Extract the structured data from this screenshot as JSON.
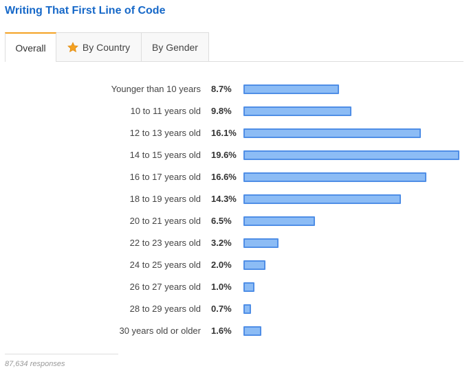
{
  "title": "Writing That First Line of Code",
  "tabs": [
    {
      "label": "Overall",
      "active": true
    },
    {
      "label": "By Country",
      "icon": "star-icon",
      "icon_color": "#f4a122"
    },
    {
      "label": "By Gender"
    }
  ],
  "chart_data": {
    "type": "bar",
    "orientation": "horizontal",
    "categories": [
      "Younger than 10 years",
      "10 to 11 years old",
      "12 to 13 years old",
      "14 to 15 years old",
      "16 to 17 years old",
      "18 to 19 years old",
      "20 to 21 years old",
      "22 to 23 years old",
      "24 to 25 years old",
      "26 to 27 years old",
      "28 to 29 years old",
      "30 years old or older"
    ],
    "values": [
      8.7,
      9.8,
      16.1,
      19.6,
      16.6,
      14.3,
      6.5,
      3.2,
      2.0,
      1.0,
      0.7,
      1.6
    ],
    "value_labels": [
      "8.7%",
      "9.8%",
      "16.1%",
      "19.6%",
      "16.6%",
      "14.3%",
      "6.5%",
      "3.2%",
      "2.0%",
      "1.0%",
      "0.7%",
      "1.6%"
    ],
    "unit": "%",
    "bar_fill": "#8cbcf5",
    "bar_border": "#4f8ee6",
    "grid": false
  },
  "footnote": "87,634 responses",
  "colors": {
    "title": "#1668c8",
    "active_tab_accent": "#f4a122"
  }
}
